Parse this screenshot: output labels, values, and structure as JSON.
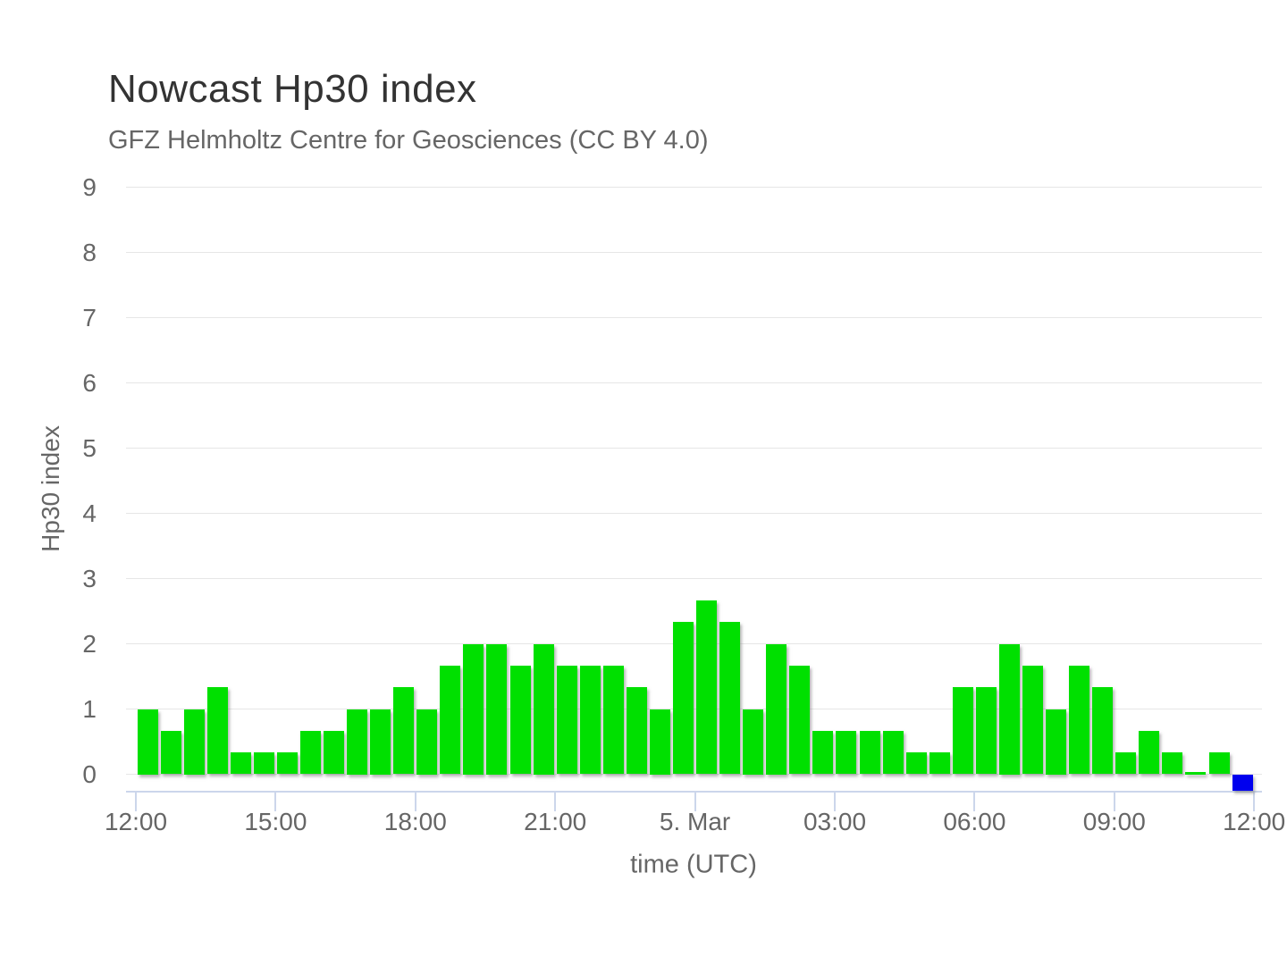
{
  "chart_data": {
    "type": "bar",
    "title": "Nowcast Hp30 index",
    "subtitle": "GFZ Helmholtz Centre for Geosciences (CC BY 4.0)",
    "xlabel": "time (UTC)",
    "ylabel": "Hp30 index",
    "grid": true,
    "legend": false,
    "interval_minutes": 30,
    "start_time_label": "12:00",
    "x_axis": {
      "tick_labels": [
        "12:00",
        "15:00",
        "18:00",
        "21:00",
        "5. Mar",
        "03:00",
        "06:00",
        "09:00",
        "12:00"
      ],
      "tick_interval_hours": 3
    },
    "y_axis": {
      "ticks": [
        0,
        1,
        2,
        3,
        4,
        5,
        6,
        7,
        8,
        9
      ],
      "min": -0.25,
      "max": 9
    },
    "values": [
      1,
      0.67,
      1,
      1.33,
      0.33,
      0.33,
      0.33,
      0.67,
      0.67,
      1,
      1,
      1.33,
      1,
      1.67,
      2,
      2,
      1.67,
      2,
      1.67,
      1.67,
      1.67,
      1.33,
      1,
      2.33,
      2.67,
      2.33,
      1,
      2,
      1.67,
      0.67,
      0.67,
      0.67,
      0.67,
      0.33,
      0.33,
      1.33,
      1.33,
      2,
      1.67,
      1,
      1.67,
      1.33,
      0.33,
      0.67,
      0.33,
      0,
      0.33,
      -0.25
    ],
    "last_bar_pending": true,
    "colors": {
      "bar": "#00e000",
      "pending_bar": "#0000ee",
      "grid_line": "#e6e6e6",
      "axis_line": "#ccd6eb",
      "tick_text": "#666666",
      "title_text": "#333333",
      "subtitle_text": "#666666"
    }
  }
}
